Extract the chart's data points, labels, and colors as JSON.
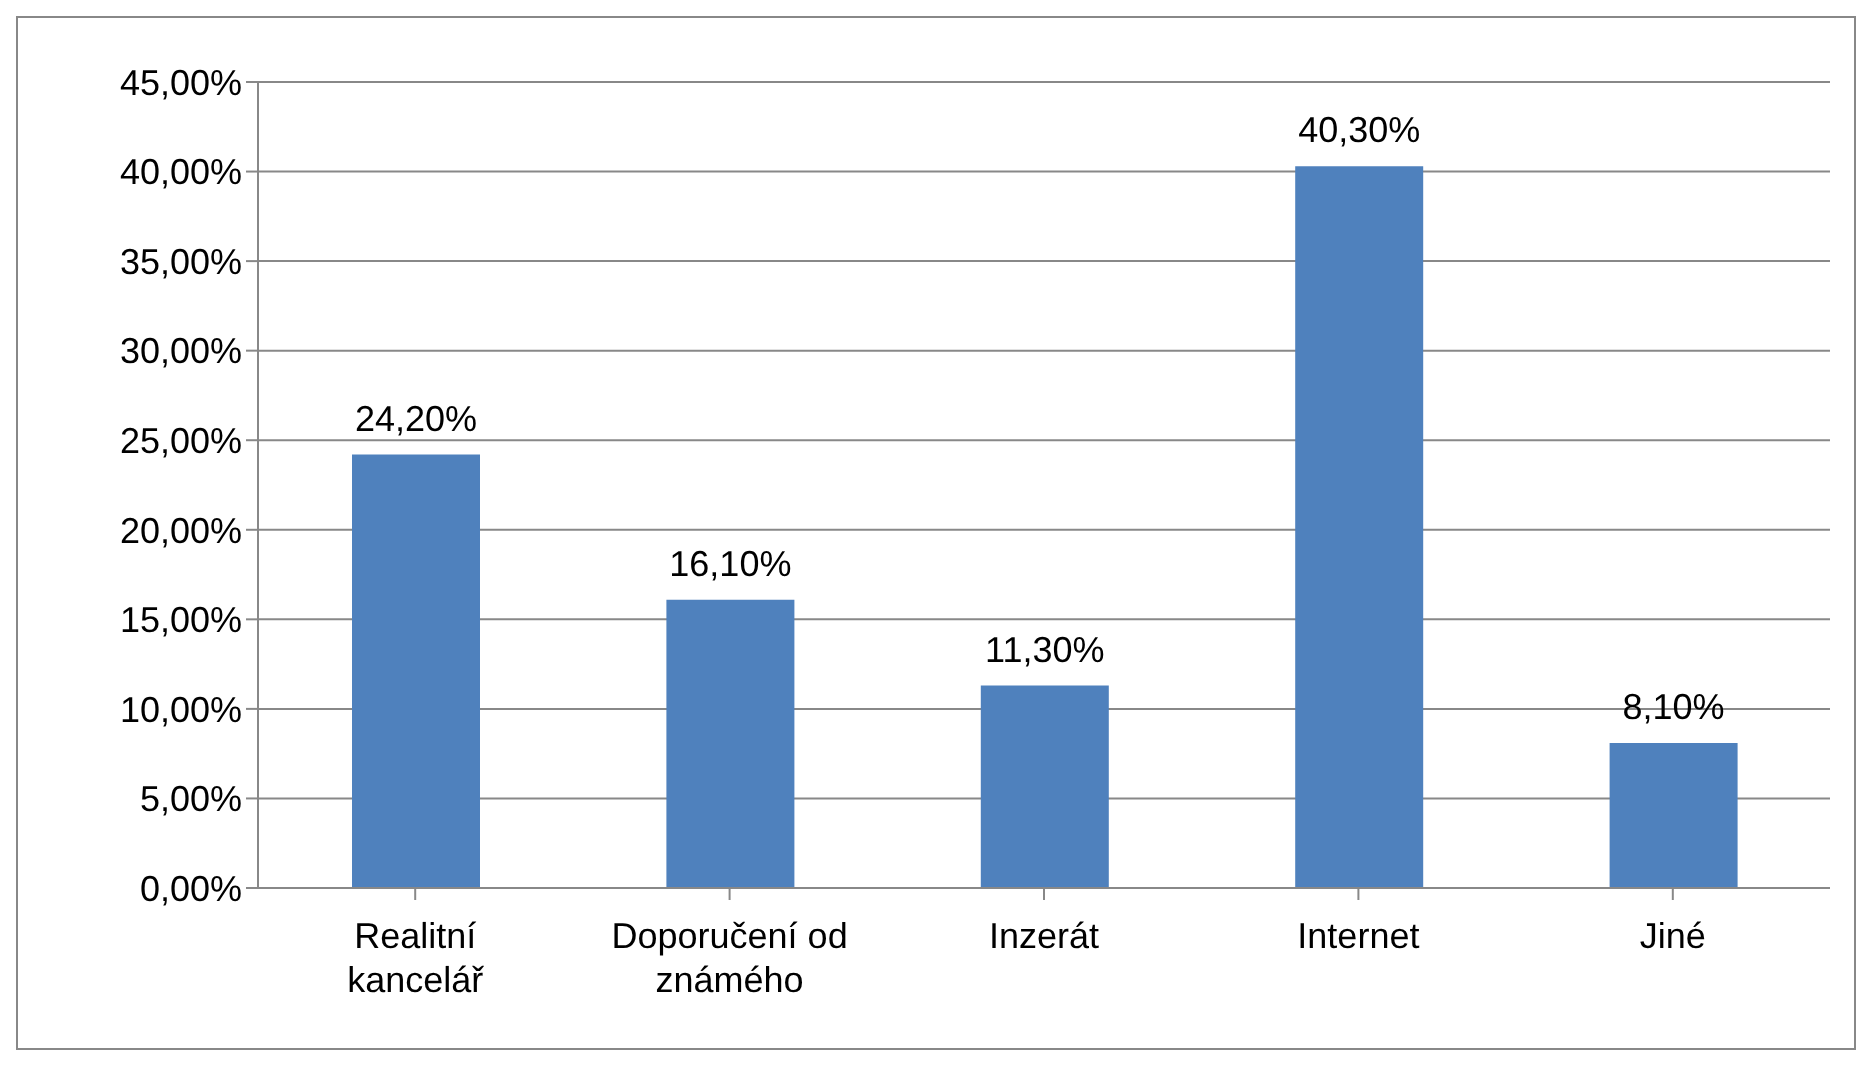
{
  "chart_data": {
    "type": "bar",
    "categories": [
      "Realitní kancelář",
      "Doporučení od známého",
      "Inzerát",
      "Internet",
      "Jiné"
    ],
    "values": [
      24.2,
      16.1,
      11.3,
      40.3,
      8.1
    ],
    "value_labels": [
      "24,20%",
      "16,10%",
      "11,30%",
      "40,30%",
      "8,10%"
    ],
    "color": "#4f81bd",
    "ylim": [
      0,
      45
    ],
    "yticks": [
      {
        "value": 0,
        "label": "0,00%"
      },
      {
        "value": 5,
        "label": "5,00%"
      },
      {
        "value": 10,
        "label": "10,00%"
      },
      {
        "value": 15,
        "label": "15,00%"
      },
      {
        "value": 20,
        "label": "20,00%"
      },
      {
        "value": 25,
        "label": "25,00%"
      },
      {
        "value": 30,
        "label": "30,00%"
      },
      {
        "value": 35,
        "label": "35,00%"
      },
      {
        "value": 40,
        "label": "40,00%"
      },
      {
        "value": 45,
        "label": "45,00%"
      }
    ],
    "grid": "y",
    "legend": false
  }
}
